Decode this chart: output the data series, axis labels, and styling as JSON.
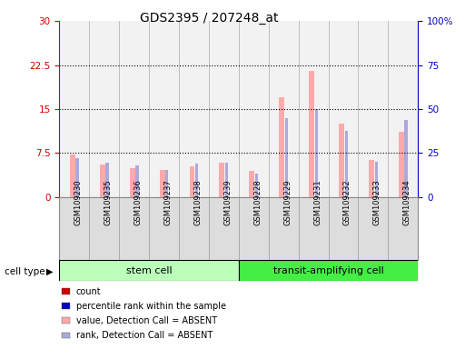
{
  "title": "GDS2395 / 207248_at",
  "samples": [
    "GSM109230",
    "GSM109235",
    "GSM109236",
    "GSM109237",
    "GSM109238",
    "GSM109239",
    "GSM109228",
    "GSM109229",
    "GSM109231",
    "GSM109232",
    "GSM109233",
    "GSM109234"
  ],
  "cell_groups": [
    {
      "label": "stem cell",
      "n": 6,
      "color": "#bbffbb"
    },
    {
      "label": "transit-amplifying cell",
      "n": 6,
      "color": "#44ee44"
    }
  ],
  "value_bars": [
    7.3,
    5.5,
    5.0,
    4.7,
    5.3,
    5.8,
    4.5,
    17.0,
    21.5,
    12.5,
    6.3,
    11.2
  ],
  "rank_bars_pct": [
    22.0,
    19.5,
    18.0,
    15.5,
    19.0,
    19.5,
    13.5,
    45.0,
    50.0,
    37.5,
    20.0,
    44.0
  ],
  "ylim_left": [
    0,
    30
  ],
  "ylim_right": [
    0,
    100
  ],
  "yticks_left": [
    0,
    7.5,
    15,
    22.5,
    30
  ],
  "ytick_labels_left": [
    "0",
    "7.5",
    "15",
    "22.5",
    "30"
  ],
  "yticks_right": [
    0,
    25,
    50,
    75,
    100
  ],
  "ytick_labels_right": [
    "0",
    "25",
    "50",
    "75",
    "100%"
  ],
  "value_bar_color": "#ffaaaa",
  "rank_bar_color": "#aaaadd",
  "count_color": "#cc0000",
  "percentile_color": "#0000cc",
  "bg_col_color": "#cccccc",
  "plot_bg": "#ffffff",
  "grid_color": "#000000",
  "legend_items": [
    {
      "label": "count",
      "color": "#cc0000"
    },
    {
      "label": "percentile rank within the sample",
      "color": "#0000cc"
    },
    {
      "label": "value, Detection Call = ABSENT",
      "color": "#ffaaaa"
    },
    {
      "label": "rank, Detection Call = ABSENT",
      "color": "#aaaadd"
    }
  ]
}
